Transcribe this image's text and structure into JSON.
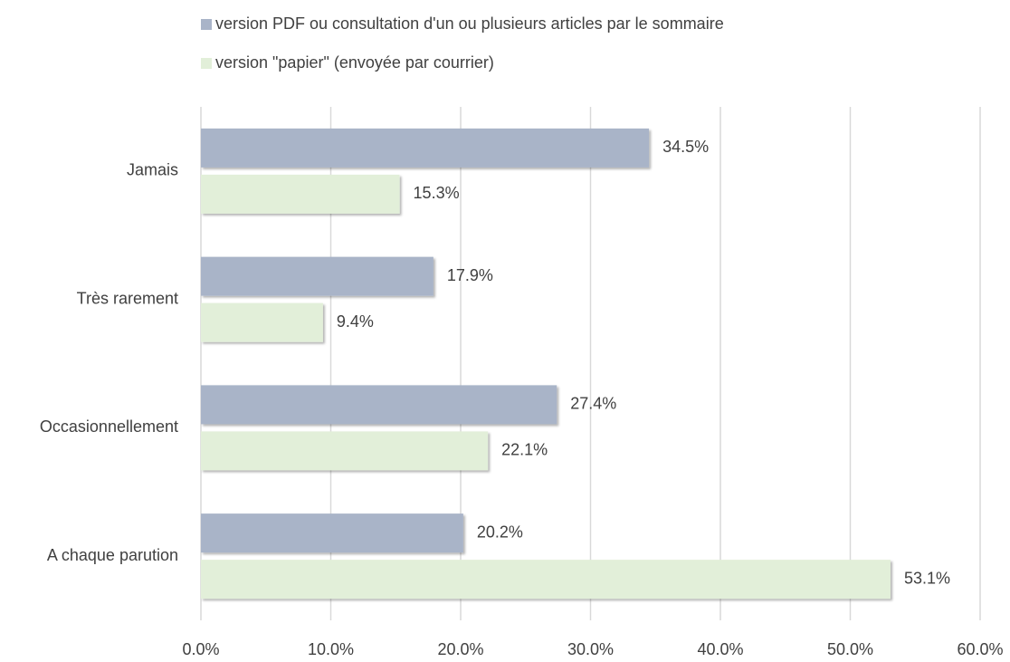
{
  "chart_data": {
    "type": "bar",
    "orientation": "horizontal",
    "categories": [
      "Jamais",
      "Très rarement",
      "Occasionnellement",
      "A chaque parution"
    ],
    "series": [
      {
        "name": "version PDF ou consultation d'un ou plusieurs articles par le sommaire",
        "color": "#a9b4c8",
        "values": [
          34.5,
          17.9,
          27.4,
          20.2
        ],
        "value_labels": [
          "34.5%",
          "17.9%",
          "27.4%",
          "20.2%"
        ]
      },
      {
        "name": "version \"papier\" (envoyée par courrier)",
        "color": "#e2efd9",
        "values": [
          15.3,
          9.4,
          22.1,
          53.1
        ],
        "value_labels": [
          "15.3%",
          "9.4%",
          "22.1%",
          "53.1%"
        ]
      }
    ],
    "xlim": [
      0,
      60
    ],
    "xticks": [
      {
        "value": 0,
        "label": "0.0%"
      },
      {
        "value": 10,
        "label": "10.0%"
      },
      {
        "value": 20,
        "label": "20.0%"
      },
      {
        "value": 30,
        "label": "30.0%"
      },
      {
        "value": 40,
        "label": "40.0%"
      },
      {
        "value": 50,
        "label": "50.0%"
      },
      {
        "value": 60,
        "label": "60.0%"
      }
    ],
    "grid": true,
    "legend": "top"
  }
}
